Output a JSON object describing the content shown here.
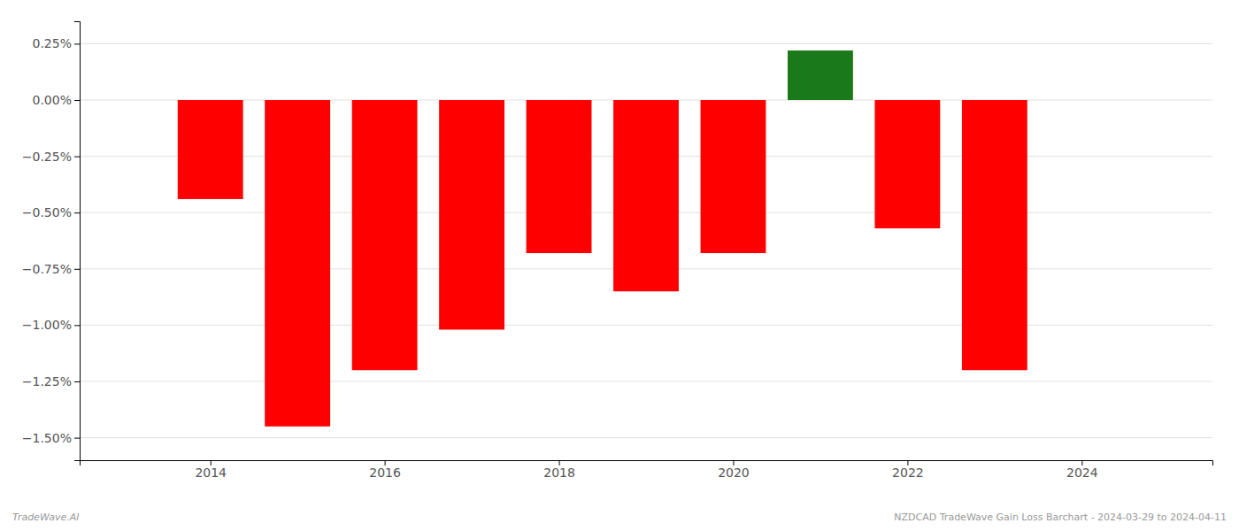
{
  "chart_data": {
    "type": "bar",
    "x": [
      2014,
      2015,
      2016,
      2017,
      2018,
      2019,
      2020,
      2021,
      2022,
      2023
    ],
    "values": [
      -0.0044,
      -0.0145,
      -0.012,
      -0.0102,
      -0.0068,
      -0.0085,
      -0.0068,
      0.0022,
      -0.0057,
      -0.012
    ],
    "colors": [
      "#ff0000",
      "#ff0000",
      "#ff0000",
      "#ff0000",
      "#ff0000",
      "#ff0000",
      "#ff0000",
      "#1a7a1a",
      "#ff0000",
      "#ff0000"
    ],
    "xlim": [
      2012.5,
      2025.5
    ],
    "xticks": [
      2014,
      2016,
      2018,
      2020,
      2022,
      2024
    ],
    "ylim": [
      -0.016,
      0.0035
    ],
    "yticks": [
      {
        "value": -0.015,
        "label": "−1.50%"
      },
      {
        "value": -0.0125,
        "label": "−1.25%"
      },
      {
        "value": -0.01,
        "label": "−1.00%"
      },
      {
        "value": -0.0075,
        "label": "−0.75%"
      },
      {
        "value": -0.005,
        "label": "−0.50%"
      },
      {
        "value": -0.0025,
        "label": "−0.25%"
      },
      {
        "value": 0.0,
        "label": "0.00%"
      },
      {
        "value": 0.0025,
        "label": "0.25%"
      }
    ],
    "grid": true,
    "annotations": [
      "TradeWave.AI",
      "NZDCAD TradeWave Gain Loss Barchart - 2024-03-29 to 2024-04-11"
    ]
  }
}
